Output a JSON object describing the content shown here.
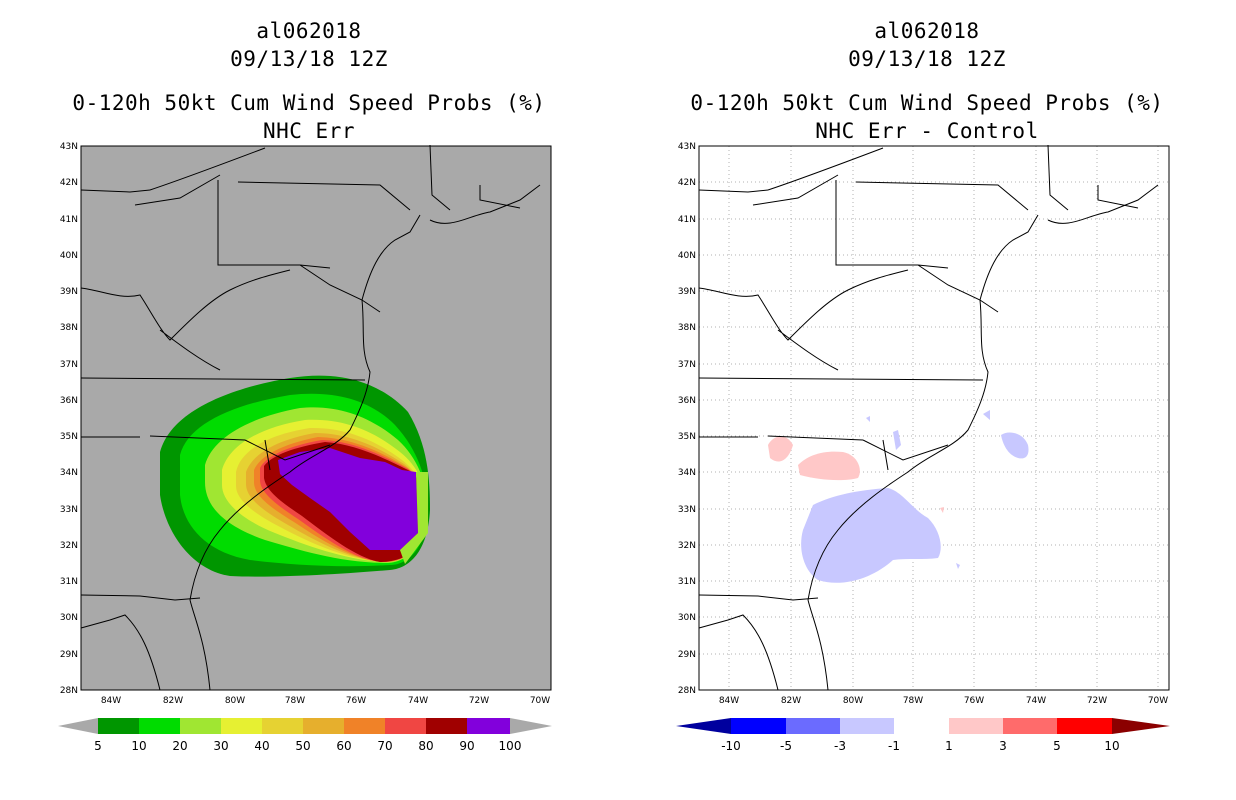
{
  "colors": {
    "left_background": "#a9a9a9",
    "prob_levels": [
      "#009600",
      "#00dc00",
      "#a0e632",
      "#e6f032",
      "#e6d232",
      "#e6af2d",
      "#f08228",
      "#f04643",
      "#a00000",
      "#8200dc"
    ],
    "diff_levels": [
      "#00009e",
      "#0000ff",
      "#6b6bff",
      "#c8c8ff",
      "#ffffff",
      "#ffc8c8",
      "#ff6b6b",
      "#ff0000",
      "#8b0000"
    ]
  },
  "left_panel": {
    "storm_id": "al062018",
    "date": "09/13/18 12Z",
    "product": "0-120h 50kt Cum Wind Speed Probs (%)",
    "subtitle": "NHC Err",
    "lat_labels": [
      "43N",
      "42N",
      "41N",
      "40N",
      "39N",
      "38N",
      "37N",
      "36N",
      "35N",
      "34N",
      "33N",
      "32N",
      "31N",
      "30N",
      "29N",
      "28N"
    ],
    "lon_labels": [
      "84W",
      "82W",
      "80W",
      "78W",
      "76W",
      "74W",
      "72W",
      "70W"
    ],
    "colorbar_ticks": [
      "5",
      "10",
      "20",
      "30",
      "40",
      "50",
      "60",
      "70",
      "80",
      "90",
      "100"
    ]
  },
  "right_panel": {
    "storm_id": "al062018",
    "date": "09/13/18 12Z",
    "product": "0-120h 50kt Cum Wind Speed Probs (%)",
    "subtitle": "NHC Err - Control",
    "lat_labels": [
      "43N",
      "42N",
      "41N",
      "40N",
      "39N",
      "38N",
      "37N",
      "36N",
      "35N",
      "34N",
      "33N",
      "32N",
      "31N",
      "30N",
      "29N",
      "28N"
    ],
    "lon_labels": [
      "84W",
      "82W",
      "80W",
      "78W",
      "76W",
      "74W",
      "72W",
      "70W"
    ],
    "colorbar_ticks": [
      "-10",
      "-5",
      "-3",
      "-1",
      "1",
      "3",
      "5",
      "10"
    ]
  }
}
